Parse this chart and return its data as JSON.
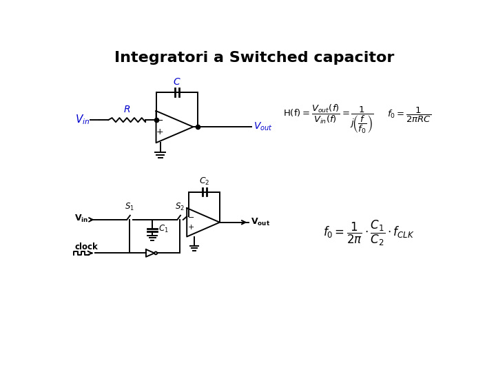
{
  "title": "Integratori a Switched capacitor",
  "title_fontsize": 16,
  "title_color": "#000000",
  "bg_color": "#ffffff",
  "circuit_color": "#000000",
  "label_color": "#0000cc",
  "formula_color": "#000000"
}
